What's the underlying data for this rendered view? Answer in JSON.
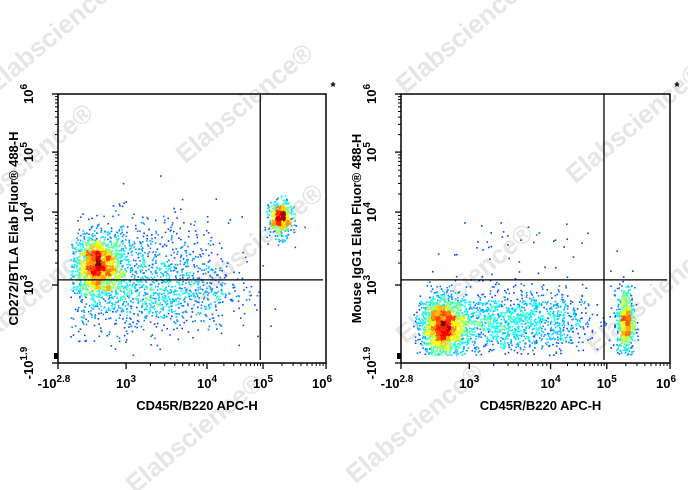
{
  "watermark": "Elabscience®",
  "chart_data": [
    {
      "type": "scatter",
      "subtype": "flow-cytometry density dot plot",
      "xlabel": "CD45R/B220 APC-H",
      "ylabel": "CD272/BTLA Elab Fluor® 488-H",
      "corner_mark": "*",
      "x_scale": "biexponential (log)",
      "y_scale": "biexponential (log)",
      "x_ticks": [
        {
          "base": "-10",
          "exp": "2.8"
        },
        {
          "base": "10",
          "exp": "3"
        },
        {
          "base": "10",
          "exp": "4"
        },
        {
          "base": "10",
          "exp": "5"
        },
        {
          "base": "10",
          "exp": "6"
        }
      ],
      "y_ticks": [
        {
          "base": "-10",
          "exp": "1.9"
        },
        {
          "base": "10",
          "exp": "3"
        },
        {
          "base": "10",
          "exp": "4"
        },
        {
          "base": "10",
          "exp": "5"
        },
        {
          "base": "10",
          "exp": "6"
        }
      ],
      "gate": {
        "x_log10": 4.95,
        "y_log10": 3.07
      },
      "colormap": "jet density",
      "populations": [
        {
          "x_log10": 2.57,
          "y_log10": 3.27,
          "sd_x": 0.18,
          "sd_y": 0.2,
          "count": 1500
        },
        {
          "x_log10": 3.2,
          "y_log10": 3.0,
          "sd_x": 0.6,
          "sd_y": 0.45,
          "count": 1600
        },
        {
          "x_log10": 5.27,
          "y_log10": 3.92,
          "sd_x": 0.09,
          "sd_y": 0.13,
          "count": 550
        }
      ]
    },
    {
      "type": "scatter",
      "subtype": "flow-cytometry density dot plot",
      "xlabel": "CD45R/B220 APC-H",
      "ylabel": "Mouse IgG1 Elab Fluor® 488-H",
      "corner_mark": "*",
      "x_scale": "biexponential (log)",
      "y_scale": "biexponential (log)",
      "x_ticks": [
        {
          "base": "-10",
          "exp": "2.8"
        },
        {
          "base": "10",
          "exp": "3"
        },
        {
          "base": "10",
          "exp": "4"
        },
        {
          "base": "10",
          "exp": "5"
        },
        {
          "base": "10",
          "exp": "6"
        }
      ],
      "y_ticks": [
        {
          "base": "-10",
          "exp": "1.9"
        },
        {
          "base": "10",
          "exp": "3"
        },
        {
          "base": "10",
          "exp": "4"
        },
        {
          "base": "10",
          "exp": "5"
        },
        {
          "base": "10",
          "exp": "6"
        }
      ],
      "gate": {
        "x_log10": 4.95,
        "y_log10": 3.07
      },
      "colormap": "jet density",
      "populations": [
        {
          "x_log10": 2.61,
          "y_log10": 2.2,
          "sd_x": 0.16,
          "sd_y": 0.28,
          "count": 1600
        },
        {
          "x_log10": 3.4,
          "y_log10": 2.3,
          "sd_x": 0.6,
          "sd_y": 0.3,
          "count": 1500
        },
        {
          "x_log10": 5.29,
          "y_log10": 2.3,
          "sd_x": 0.07,
          "sd_y": 0.33,
          "count": 650
        },
        {
          "x_log10": 3.4,
          "y_log10": 3.5,
          "sd_x": 0.5,
          "sd_y": 0.3,
          "count": 45
        }
      ]
    }
  ]
}
